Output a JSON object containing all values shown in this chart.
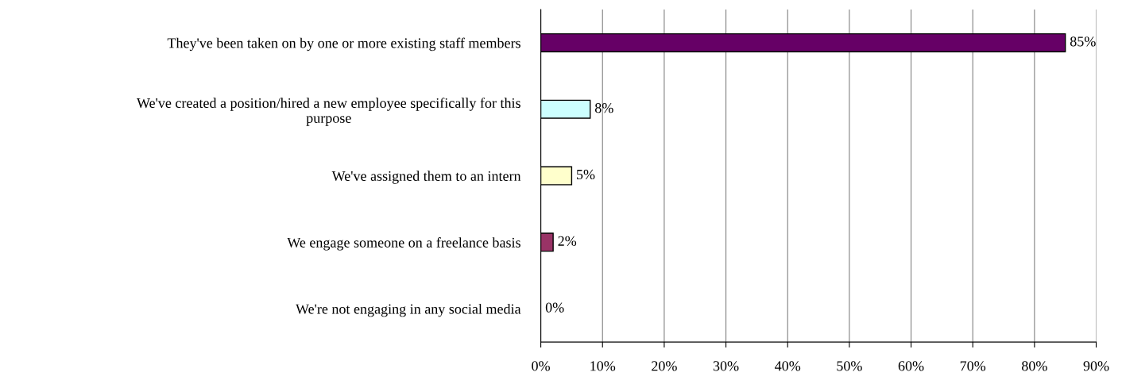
{
  "chart_data": {
    "type": "bar",
    "orientation": "horizontal",
    "categories": [
      "They've been taken on by one or more existing staff members",
      "We've created a position/hired a new employee specifically for this\npurpose",
      "We've assigned them to an intern",
      "We engage someone on a freelance basis",
      "We're not engaging in any social media"
    ],
    "values": [
      85,
      8,
      5,
      2,
      0
    ],
    "colors": [
      "#660066",
      "#ccffff",
      "#ffffcc",
      "#993366",
      null
    ],
    "xlim": [
      0,
      90
    ],
    "xticks": [
      {
        "value": 0,
        "label": "0%"
      },
      {
        "value": 10,
        "label": "10%"
      },
      {
        "value": 20,
        "label": "20%"
      },
      {
        "value": 30,
        "label": "30%"
      },
      {
        "value": 40,
        "label": "40%"
      },
      {
        "value": 50,
        "label": "50%"
      },
      {
        "value": 60,
        "label": "60%"
      },
      {
        "value": 70,
        "label": "70%"
      },
      {
        "value": 80,
        "label": "80%"
      },
      {
        "value": 90,
        "label": "90%"
      }
    ],
    "value_labels": [
      "85%",
      "8%",
      "5%",
      "2%",
      "0%"
    ],
    "grid": "x"
  }
}
